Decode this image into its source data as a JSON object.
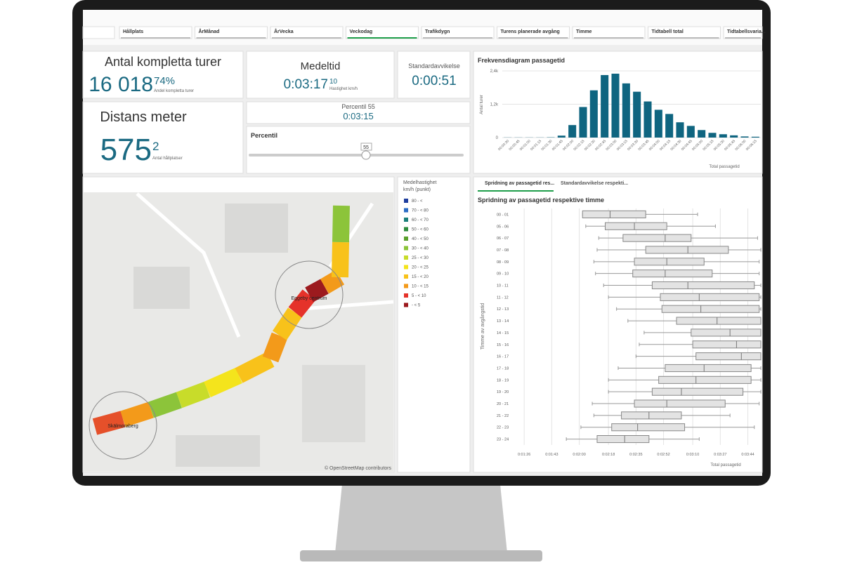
{
  "filters": [
    "Hållplats",
    "ÅrMånad",
    "ÅrVecka",
    "Veckodag",
    "Trafikdygn",
    "Turens planerade avgång",
    "Timme",
    "Tidtabell total",
    "Tidtabellsvaria..."
  ],
  "kpis": {
    "trips_title": "Antal kompletta turer",
    "trips_value": "16 018",
    "trips_pct": "74%",
    "trips_pct_label": "Andel kompletta turer",
    "mean_title": "Medeltid",
    "mean_value": "0:03:17",
    "speed_value": "10",
    "speed_label": "Hastighet km/h",
    "std_title": "Standardavvikelse",
    "std_value": "0:00:51",
    "dist_title": "Distans meter",
    "dist_value": "575",
    "stops_value": "2",
    "stops_label": "Antal hållplatser",
    "perc_title": "Percentil 55",
    "perc_value": "0:03:15",
    "slider_title": "Percentil",
    "slider_value": "55"
  },
  "histogram": {
    "title": "Frekvensdiagram passagetid",
    "y_label": "Antal turer",
    "x_label": "Total passagetid",
    "color": "#0f6580",
    "categories": [
      "00:00:30",
      "00:00:45",
      "00:01:00",
      "00:01:15",
      "00:01:30",
      "00:01:45",
      "00:02:00",
      "00:02:15",
      "00:02:30",
      "00:02:45",
      "00:03:00",
      "00:03:15",
      "00:03:30",
      "00:03:45",
      "00:04:00",
      "00:04:15",
      "00:04:30",
      "00:04:45",
      "00:05:00",
      "00:05:15",
      "00:05:30",
      "00:05:45",
      "00:06:00",
      "00:06:15"
    ],
    "values": [
      5,
      5,
      5,
      5,
      10,
      70,
      450,
      1100,
      1700,
      2250,
      2300,
      1950,
      1650,
      1300,
      1000,
      850,
      550,
      420,
      270,
      170,
      120,
      80,
      40,
      30
    ],
    "ylim": [
      0,
      2400
    ],
    "yticks": [
      0,
      {
        "value": 1200,
        "label": "1,2k"
      },
      {
        "value": 2400,
        "label": "2,4k"
      }
    ]
  },
  "map": {
    "stop_start": "Skälmoraberg",
    "stop_end": "Eggeby centrum",
    "attribution": "© OpenStreetMap contributors"
  },
  "legend": {
    "title": [
      "Medelhastighet",
      "km/h (punkt)"
    ],
    "items": [
      {
        "label": "80 - <",
        "color": "#1f3e9e"
      },
      {
        "label": "70 - < 80",
        "color": "#2b6cc4"
      },
      {
        "label": "60 - < 70",
        "color": "#1a7f7a"
      },
      {
        "label": "50 - < 60",
        "color": "#2e8b3c"
      },
      {
        "label": "40 - < 50",
        "color": "#5aa02c"
      },
      {
        "label": "30 - < 40",
        "color": "#8cc43a"
      },
      {
        "label": "25 - < 30",
        "color": "#c8dc2a"
      },
      {
        "label": "20 - < 25",
        "color": "#f4e41c"
      },
      {
        "label": "15 - < 20",
        "color": "#f8c21a"
      },
      {
        "label": "10 - < 15",
        "color": "#f39a1a"
      },
      {
        "label": "5 - < 10",
        "color": "#e5322a"
      },
      {
        "label": "- < 5",
        "color": "#9c1a1e"
      }
    ]
  },
  "boxplot": {
    "tabs": [
      "Spridning av passagetid res...",
      "Standardavvikelse respekti..."
    ],
    "title": "Spridning av passagetid respektive timme",
    "y_label": "Timme av avgångstid",
    "x_label": "Total passagetid",
    "categories": [
      "00 - 01",
      "05 - 06",
      "06 - 07",
      "07 - 08",
      "08 - 09",
      "09 - 10",
      "10 - 11",
      "11 - 12",
      "12 - 13",
      "13 - 14",
      "14 - 15",
      "15 - 16",
      "16 - 17",
      "17 - 18",
      "18 - 19",
      "19 - 20",
      "20 - 21",
      "21 - 22",
      "22 - 23",
      "23 - 24"
    ],
    "low": [
      122,
      124,
      132,
      131,
      129,
      130,
      135,
      138,
      143,
      150,
      160,
      157,
      155,
      144,
      138,
      138,
      128,
      129,
      121,
      112
    ],
    "q1": [
      122,
      136,
      147,
      161,
      154,
      153,
      165,
      170,
      171,
      180,
      189,
      190,
      192,
      173,
      169,
      165,
      154,
      146,
      140,
      131
    ],
    "median": [
      139,
      154,
      173,
      187,
      174,
      173,
      187,
      194,
      195,
      205,
      213,
      217,
      220,
      197,
      192,
      183,
      174,
      163,
      156,
      148
    ],
    "q3": [
      161,
      174,
      189,
      212,
      197,
      202,
      228,
      231,
      231,
      232,
      232,
      232,
      232,
      226,
      226,
      221,
      210,
      183,
      185,
      163
    ],
    "high": [
      193,
      204,
      230,
      232,
      231,
      231,
      232,
      232,
      232,
      232,
      232,
      232,
      232,
      232,
      232,
      232,
      231,
      213,
      228,
      194
    ],
    "xlim": [
      79,
      232
    ],
    "xticks": [
      {
        "value": 86,
        "label": "0:01:26"
      },
      {
        "value": 103,
        "label": "0:01:43"
      },
      {
        "value": 120,
        "label": "0:02:00"
      },
      {
        "value": 138,
        "label": "0:02:18"
      },
      {
        "value": 155,
        "label": "0:02:35"
      },
      {
        "value": 172,
        "label": "0:02:52"
      },
      {
        "value": 190,
        "label": "0:03:10"
      },
      {
        "value": 207,
        "label": "0:03:27"
      },
      {
        "value": 224,
        "label": "0:03:44"
      }
    ]
  }
}
